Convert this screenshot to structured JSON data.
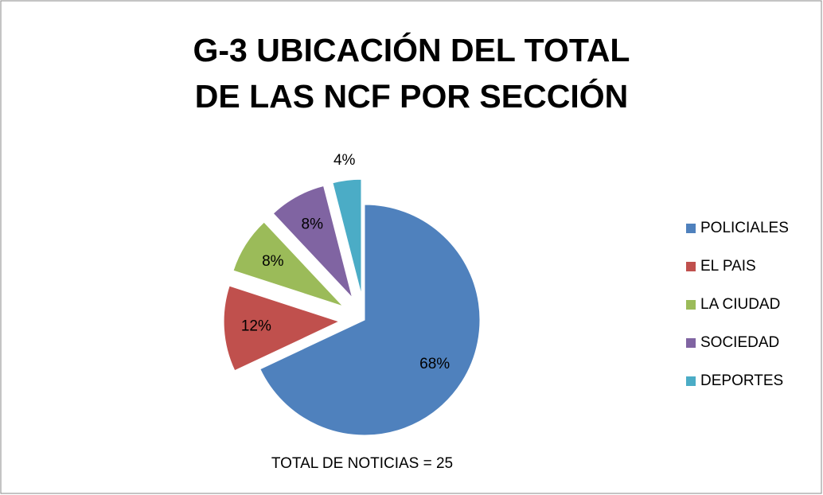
{
  "chart_data": {
    "type": "pie",
    "title": "G-3 UBICACIÓN DEL TOTAL DE LAS NCF POR SECCIÓN",
    "annotation": "TOTAL DE NOTICIAS = 25",
    "categories": [
      "POLICIALES",
      "EL PAIS",
      "LA CIUDAD",
      "SOCIEDAD",
      "DEPORTES"
    ],
    "values": [
      68,
      12,
      8,
      8,
      4
    ],
    "value_labels": [
      "68%",
      "12%",
      "8%",
      "8%",
      "4%"
    ],
    "colors": [
      "#4f81bd",
      "#c0504d",
      "#9bbb59",
      "#8064a2",
      "#4bacc6"
    ],
    "legend": "right"
  }
}
